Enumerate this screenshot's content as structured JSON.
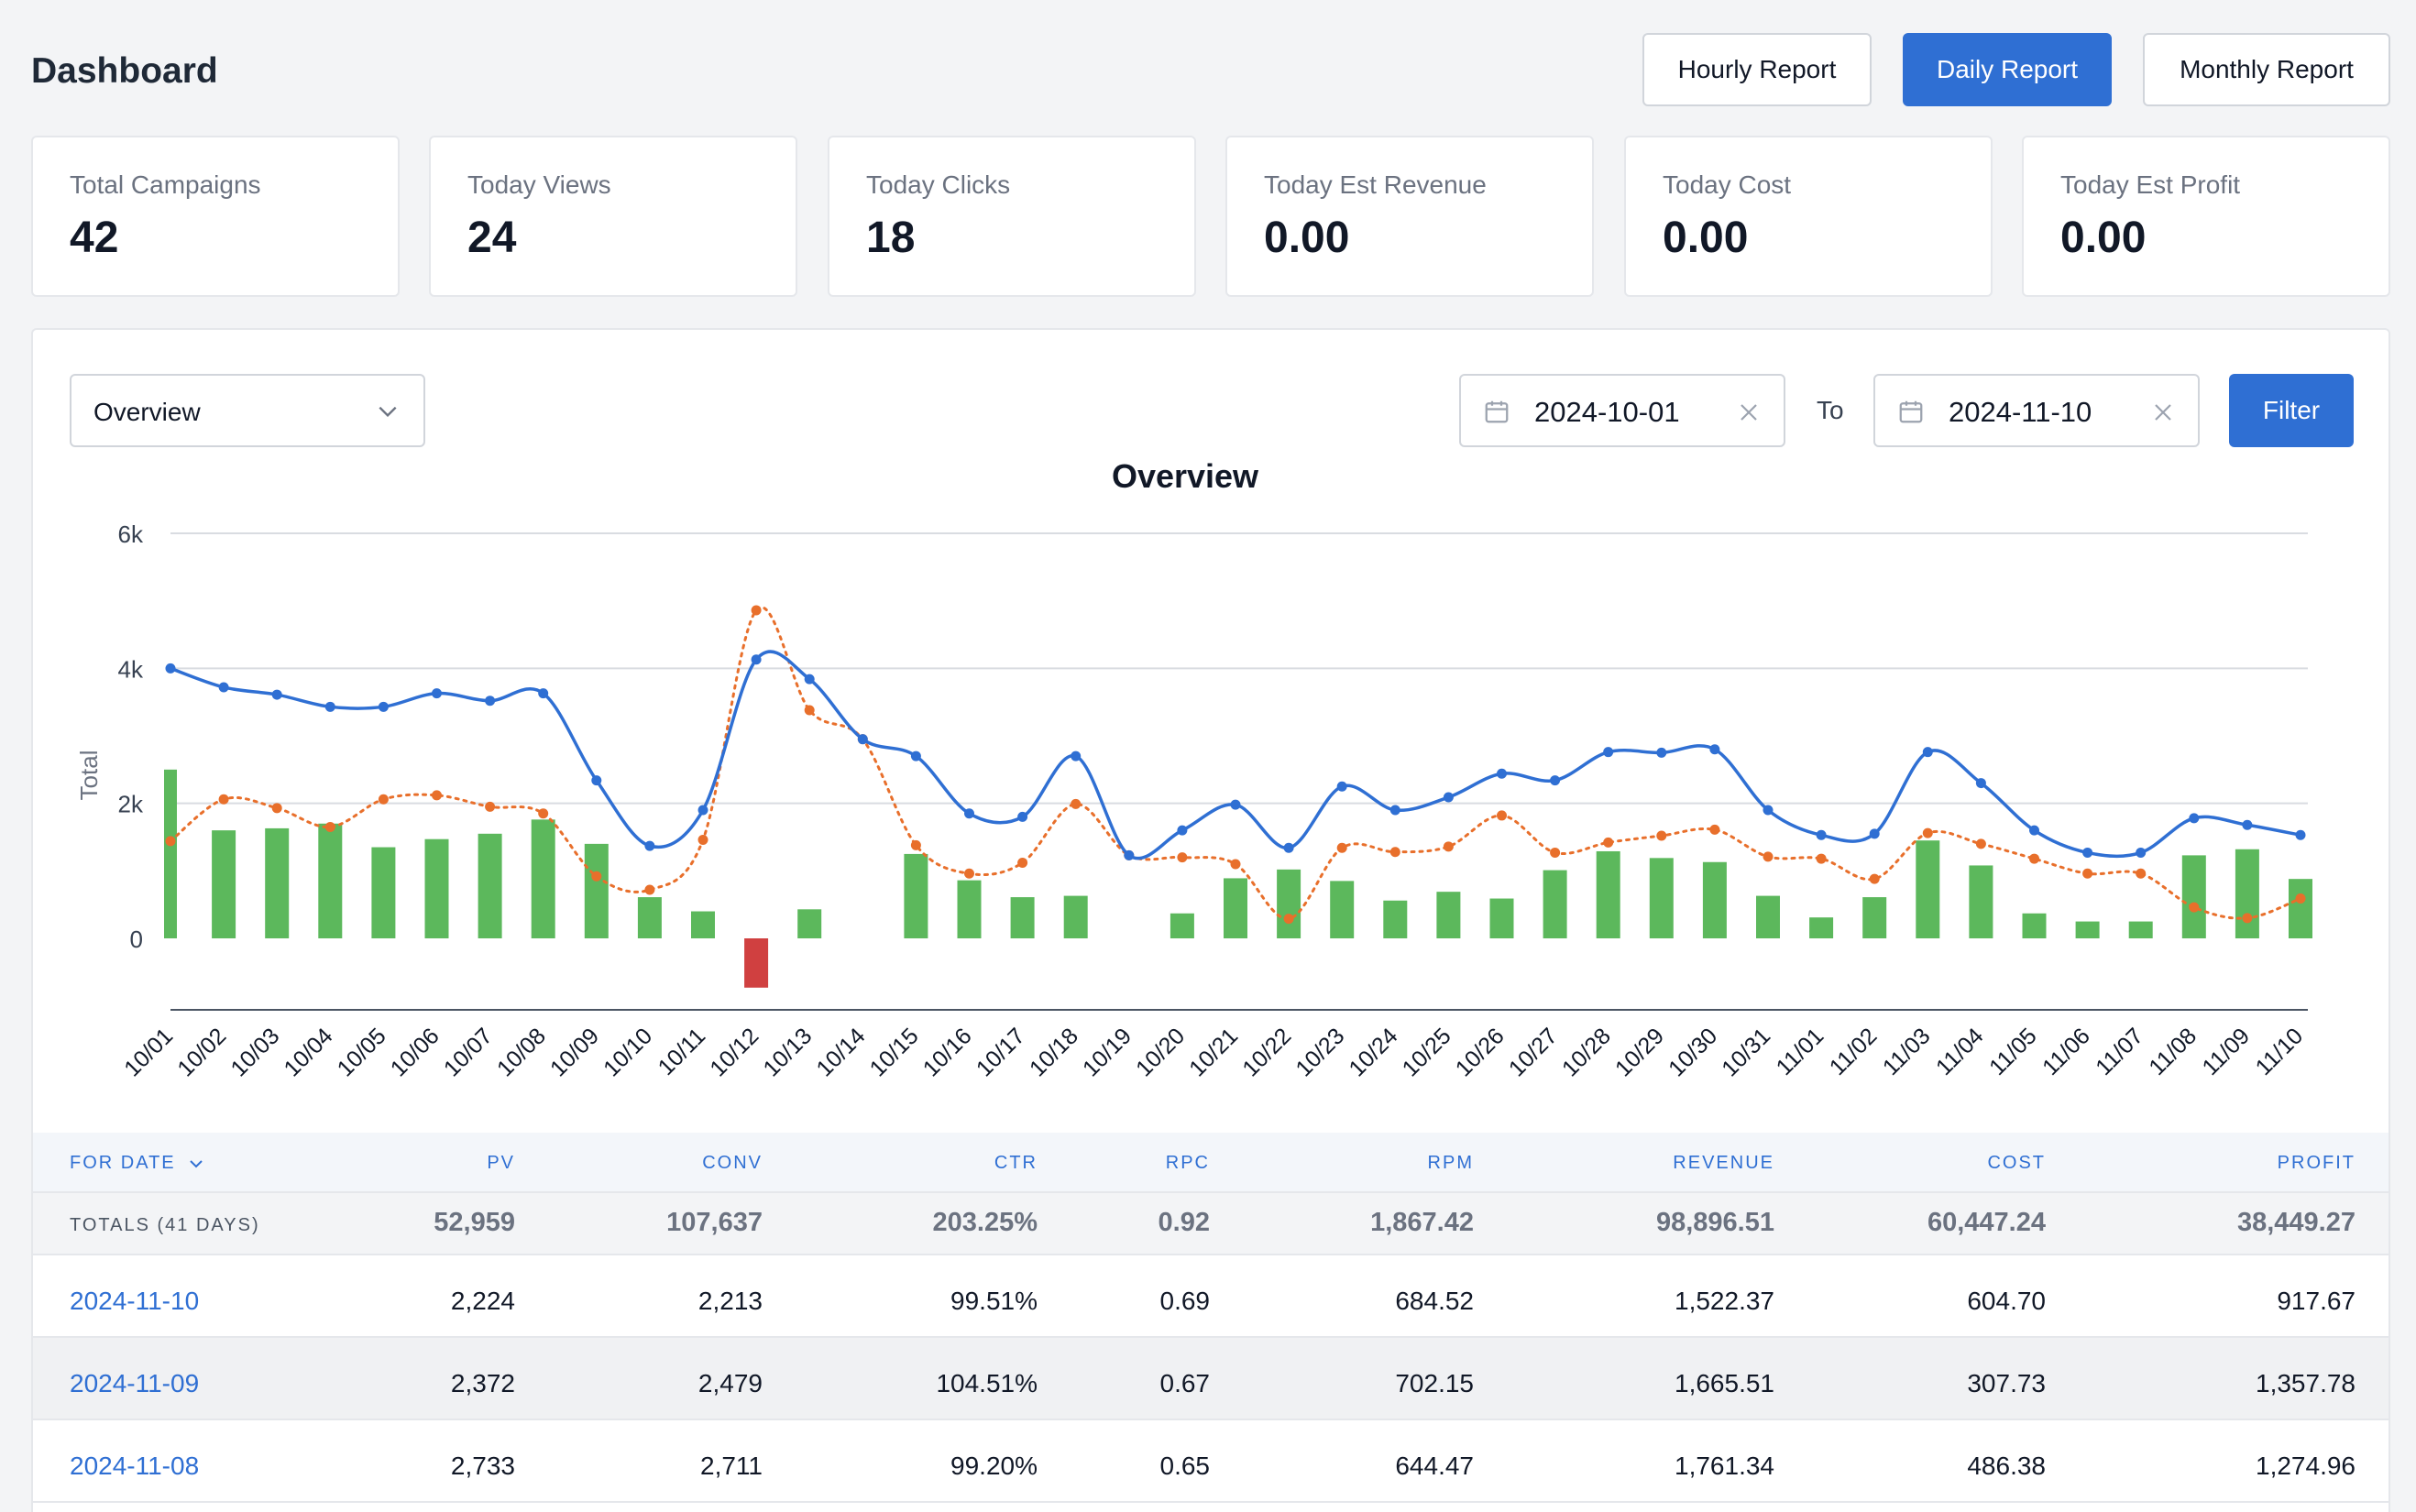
{
  "header": {
    "title": "Dashboard",
    "buttons": [
      {
        "label": "Hourly Report",
        "active": false
      },
      {
        "label": "Daily Report",
        "active": true
      },
      {
        "label": "Monthly Report",
        "active": false
      }
    ]
  },
  "stats": [
    {
      "label": "Total Campaigns",
      "value": "42"
    },
    {
      "label": "Today Views",
      "value": "24"
    },
    {
      "label": "Today Clicks",
      "value": "18"
    },
    {
      "label": "Today Est Revenue",
      "value": "0.00"
    },
    {
      "label": "Today Cost",
      "value": "0.00"
    },
    {
      "label": "Today Est Profit",
      "value": "0.00"
    }
  ],
  "filters": {
    "view_select": "Overview",
    "start_date": "2024-10-01",
    "to_label": "To",
    "end_date": "2024-11-10",
    "filter_label": "Filter"
  },
  "colors": {
    "accent": "#2f6fd3",
    "line_blue": "#2f6fd3",
    "line_orange": "#e86f2b",
    "bar_green": "#5cb85c",
    "bar_red": "#d04040"
  },
  "chart_data": {
    "type": "bar",
    "title": "Overview",
    "ylabel": "Total",
    "ylim": [
      -1000,
      6000
    ],
    "yticks": [
      "6k",
      "4k",
      "2k",
      "0"
    ],
    "ytick_values": [
      6000,
      4000,
      2000,
      0
    ],
    "grid": true,
    "categories": [
      "10/01",
      "10/02",
      "10/03",
      "10/04",
      "10/05",
      "10/06",
      "10/07",
      "10/08",
      "10/09",
      "10/10",
      "10/11",
      "10/12",
      "10/13",
      "10/14",
      "10/15",
      "10/16",
      "10/17",
      "10/18",
      "10/19",
      "10/20",
      "10/21",
      "10/22",
      "10/23",
      "10/24",
      "10/25",
      "10/26",
      "10/27",
      "10/28",
      "10/29",
      "10/30",
      "10/31",
      "11/01",
      "11/02",
      "11/03",
      "11/04",
      "11/05",
      "11/06",
      "11/07",
      "11/08",
      "11/09",
      "11/10"
    ],
    "series": [
      {
        "kind": "line",
        "values": [
          4000,
          3720,
          3610,
          3430,
          3430,
          3630,
          3520,
          3630,
          2340,
          1370,
          1900,
          4130,
          3840,
          2950,
          2700,
          1850,
          1800,
          2700,
          1230,
          1600,
          1980,
          1340,
          2250,
          1900,
          2090,
          2440,
          2340,
          2760,
          2750,
          2800,
          1900,
          1530,
          1550,
          2760,
          2300,
          1600,
          1270,
          1270,
          1780,
          1680,
          1530
        ]
      },
      {
        "kind": "dotted-line",
        "values": [
          1440,
          2060,
          1930,
          1650,
          2060,
          2120,
          1950,
          1850,
          920,
          720,
          1460,
          4860,
          3380,
          2950,
          1380,
          960,
          1120,
          1990,
          1230,
          1200,
          1100,
          290,
          1340,
          1280,
          1360,
          1820,
          1270,
          1420,
          1520,
          1610,
          1210,
          1180,
          880,
          1560,
          1400,
          1180,
          960,
          960,
          460,
          300,
          590
        ]
      },
      {
        "kind": "bar",
        "values": [
          2500,
          1600,
          1630,
          1700,
          1350,
          1470,
          1550,
          1760,
          1400,
          610,
          400,
          -730,
          430,
          0,
          1250,
          860,
          610,
          630,
          0,
          370,
          890,
          1020,
          850,
          560,
          690,
          590,
          1010,
          1290,
          1190,
          1130,
          630,
          310,
          610,
          1450,
          1080,
          370,
          250,
          250,
          1230,
          1320,
          880
        ]
      }
    ]
  },
  "table": {
    "columns": [
      "FOR DATE",
      "PV",
      "CONV",
      "CTR",
      "RPC",
      "RPM",
      "REVENUE",
      "COST",
      "PROFIT"
    ],
    "sort_icon": "chevron-down-icon",
    "totals": {
      "label": "TOTALS (41 DAYS)",
      "values": [
        "52,959",
        "107,637",
        "203.25%",
        "0.92",
        "1,867.42",
        "98,896.51",
        "60,447.24",
        "38,449.27"
      ]
    },
    "rows": [
      {
        "date": "2024-11-10",
        "values": [
          "2,224",
          "2,213",
          "99.51%",
          "0.69",
          "684.52",
          "1,522.37",
          "604.70",
          "917.67"
        ]
      },
      {
        "date": "2024-11-09",
        "values": [
          "2,372",
          "2,479",
          "104.51%",
          "0.67",
          "702.15",
          "1,665.51",
          "307.73",
          "1,357.78"
        ]
      },
      {
        "date": "2024-11-08",
        "values": [
          "2,733",
          "2,711",
          "99.20%",
          "0.65",
          "644.47",
          "1,761.34",
          "486.38",
          "1,274.96"
        ]
      }
    ]
  }
}
